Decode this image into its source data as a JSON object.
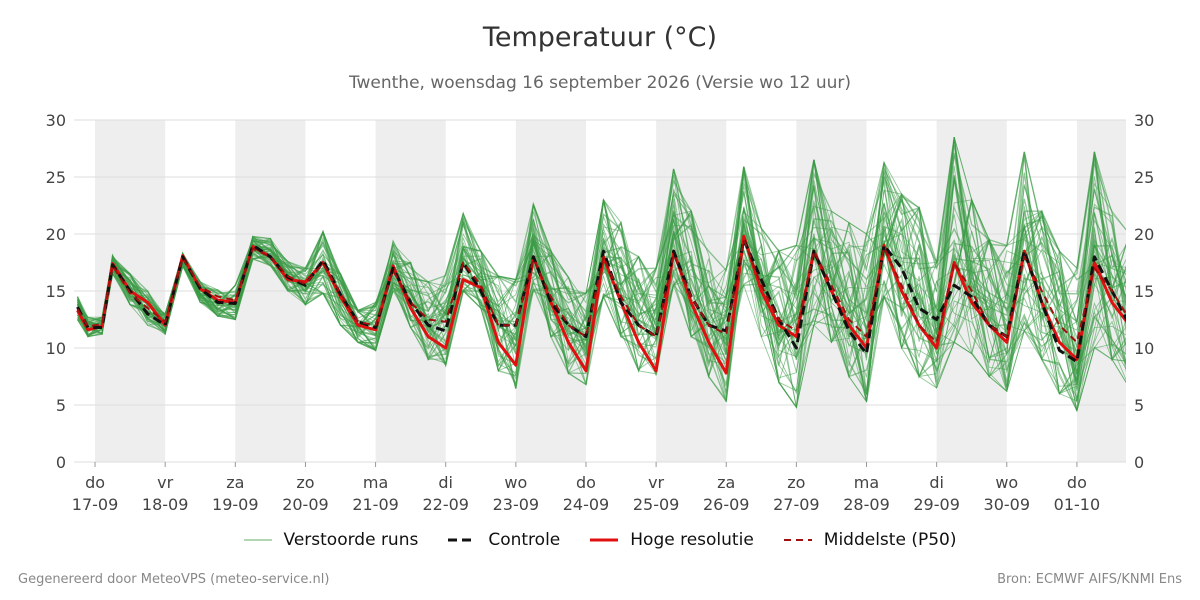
{
  "header": {
    "title": "Temperatuur (°C)",
    "subtitle": "Twenthe, woensdag 16 september 2026 (Versie wo 12 uur)"
  },
  "footer": {
    "left": "Gegenereerd door MeteoVPS (meteo-service.nl)",
    "right": "Bron: ECMWF AIFS/KNMI Ens"
  },
  "colors": {
    "ensemble": "#3a9a46",
    "controle": "#111111",
    "hoge_resolutie": "#e01010",
    "middelste": "#a01010",
    "weekend_band": "#eeeeee",
    "grid": "#dddddd"
  },
  "legend": [
    {
      "key": "ensemble",
      "label": "Verstoorde runs",
      "style": "thin"
    },
    {
      "key": "controle",
      "label": "Controle",
      "style": "dashed-thick"
    },
    {
      "key": "hoge_resolutie",
      "label": "Hoge resolutie",
      "style": "solid-thick"
    },
    {
      "key": "middelste",
      "label": "Middelste (P50)",
      "style": "dashed"
    }
  ],
  "chart_data": {
    "type": "line",
    "ylim": [
      0,
      30
    ],
    "yticks": [
      0,
      5,
      10,
      15,
      20,
      25,
      30
    ],
    "grid": true,
    "legend_position": "bottom",
    "x_units": "dag (1 = do 17-09)",
    "xlim": [
      0.7,
      15.7
    ],
    "day_labels": [
      {
        "day": "do",
        "date": "17-09"
      },
      {
        "day": "vr",
        "date": "18-09"
      },
      {
        "day": "za",
        "date": "19-09"
      },
      {
        "day": "zo",
        "date": "20-09"
      },
      {
        "day": "ma",
        "date": "21-09"
      },
      {
        "day": "di",
        "date": "22-09"
      },
      {
        "day": "wo",
        "date": "23-09"
      },
      {
        "day": "do",
        "date": "24-09"
      },
      {
        "day": "vr",
        "date": "25-09"
      },
      {
        "day": "za",
        "date": "26-09"
      },
      {
        "day": "zo",
        "date": "27-09"
      },
      {
        "day": "ma",
        "date": "28-09"
      },
      {
        "day": "di",
        "date": "29-09"
      },
      {
        "day": "wo",
        "date": "30-09"
      },
      {
        "day": "do",
        "date": "01-10"
      }
    ],
    "shaded_days": [
      1,
      3,
      5,
      7,
      9,
      11,
      13,
      15
    ],
    "x": [
      0.75,
      0.9,
      1.1,
      1.25,
      1.5,
      1.75,
      2.0,
      2.25,
      2.5,
      2.75,
      3.0,
      3.25,
      3.5,
      3.75,
      4.0,
      4.25,
      4.5,
      4.75,
      5.0,
      5.25,
      5.5,
      5.75,
      6.0,
      6.25,
      6.5,
      6.75,
      7.0,
      7.25,
      7.5,
      7.75,
      8.0,
      8.25,
      8.5,
      8.75,
      9.0,
      9.25,
      9.5,
      9.75,
      10.0,
      10.25,
      10.5,
      10.75,
      11.0,
      11.25,
      11.5,
      11.75,
      12.0,
      12.25,
      12.5,
      12.75,
      13.0,
      13.25,
      13.5,
      13.75,
      14.0,
      14.25,
      14.5,
      14.75,
      15.0,
      15.25,
      15.5,
      15.75
    ],
    "series": [
      {
        "name": "Hoge resolutie",
        "key": "hoge_resolutie",
        "values": [
          13.3,
          11.6,
          11.9,
          17.4,
          15.0,
          14.0,
          12.0,
          18.1,
          15.2,
          14.2,
          14.0,
          18.9,
          18.0,
          16.0,
          15.8,
          17.5,
          14.5,
          12.0,
          11.6,
          17.2,
          13.5,
          11.0,
          10.0,
          16.0,
          15.3,
          10.5,
          8.5,
          18.0,
          14.0,
          10.5,
          8.0,
          18.0,
          14.0,
          10.5,
          8.0,
          18.5,
          14.0,
          10.5,
          7.8,
          19.8,
          15.0,
          12.0,
          11.0,
          18.5,
          15.0,
          12.0,
          10.0,
          19.0,
          15.0,
          12.0,
          10.0,
          17.5,
          14.0,
          12.0,
          10.5,
          18.5,
          14.0,
          10.5,
          9.0,
          17.5,
          14.0,
          12.0
        ]
      },
      {
        "name": "Controle",
        "key": "controle",
        "values": [
          13.6,
          11.8,
          11.8,
          17.3,
          15.0,
          13.0,
          12.0,
          18.0,
          15.2,
          14.0,
          13.9,
          19.0,
          18.0,
          16.2,
          15.5,
          17.7,
          14.7,
          12.3,
          11.8,
          17.0,
          14.0,
          12.0,
          11.5,
          17.5,
          15.0,
          12.0,
          12.0,
          18.0,
          14.0,
          12.0,
          11.0,
          18.5,
          14.0,
          12.0,
          11.0,
          18.5,
          14.5,
          12.0,
          11.5,
          19.5,
          16.0,
          12.5,
          10.0,
          18.5,
          15.0,
          11.5,
          9.5,
          19.0,
          17.0,
          13.5,
          12.5,
          15.5,
          14.5,
          12.0,
          11.0,
          18.5,
          14.0,
          9.8,
          8.8,
          18.0,
          15.0,
          12.0
        ]
      },
      {
        "name": "Middelste (P50)",
        "key": "middelste",
        "values": [
          13.4,
          11.9,
          12.1,
          17.2,
          14.8,
          13.5,
          12.3,
          17.9,
          15.4,
          14.5,
          14.2,
          18.7,
          18.0,
          16.3,
          15.6,
          17.4,
          14.8,
          12.3,
          12.0,
          16.8,
          14.0,
          12.5,
          12.3,
          17.5,
          15.5,
          12.0,
          12.0,
          17.8,
          14.5,
          12.0,
          11.0,
          18.0,
          14.5,
          12.0,
          11.0,
          18.2,
          14.5,
          12.0,
          11.2,
          19.5,
          15.5,
          12.5,
          11.5,
          18.5,
          15.5,
          12.5,
          11.0,
          18.8,
          15.5,
          12.0,
          10.5,
          17.5,
          15.0,
          12.0,
          11.0,
          18.0,
          15.0,
          12.0,
          10.5,
          17.0,
          15.0,
          12.5
        ]
      }
    ],
    "ensemble_members": 50,
    "ensemble_envelope": {
      "min": [
        12.5,
        11.0,
        11.2,
        16.5,
        13.8,
        12.0,
        11.2,
        17.2,
        14.0,
        12.8,
        12.5,
        17.8,
        17.2,
        15.0,
        13.8,
        14.8,
        12.0,
        10.5,
        9.8,
        15.0,
        11.8,
        9.0,
        8.5,
        15.0,
        13.5,
        8.0,
        6.2,
        15.0,
        11.0,
        7.8,
        6.8,
        14.5,
        11.0,
        8.0,
        7.5,
        15.5,
        11.0,
        7.5,
        5.3,
        15.5,
        11.0,
        7.0,
        4.8,
        12.0,
        10.5,
        7.5,
        5.3,
        14.5,
        10.0,
        7.5,
        6.5,
        10.5,
        9.5,
        7.5,
        6.2,
        11.5,
        9.0,
        6.0,
        4.5,
        10.0,
        9.0,
        6.5
      ],
      "max": [
        14.5,
        12.7,
        12.7,
        18.1,
        16.5,
        15.0,
        13.0,
        18.3,
        15.8,
        15.1,
        15.5,
        19.8,
        19.6,
        17.6,
        17.0,
        20.2,
        16.5,
        13.3,
        14.0,
        19.4,
        17.5,
        15.8,
        16.5,
        21.8,
        18.5,
        16.3,
        16.0,
        22.6,
        18.5,
        16.2,
        14.8,
        23.0,
        21.0,
        18.0,
        17.0,
        25.7,
        22.0,
        18.5,
        17.0,
        25.9,
        20.5,
        18.5,
        19.0,
        26.5,
        22.0,
        21.0,
        20.0,
        26.3,
        23.5,
        22.3,
        17.5,
        28.5,
        23.0,
        19.5,
        19.0,
        27.2,
        22.0,
        18.5,
        17.0,
        27.2,
        22.0,
        20.0
      ]
    }
  }
}
